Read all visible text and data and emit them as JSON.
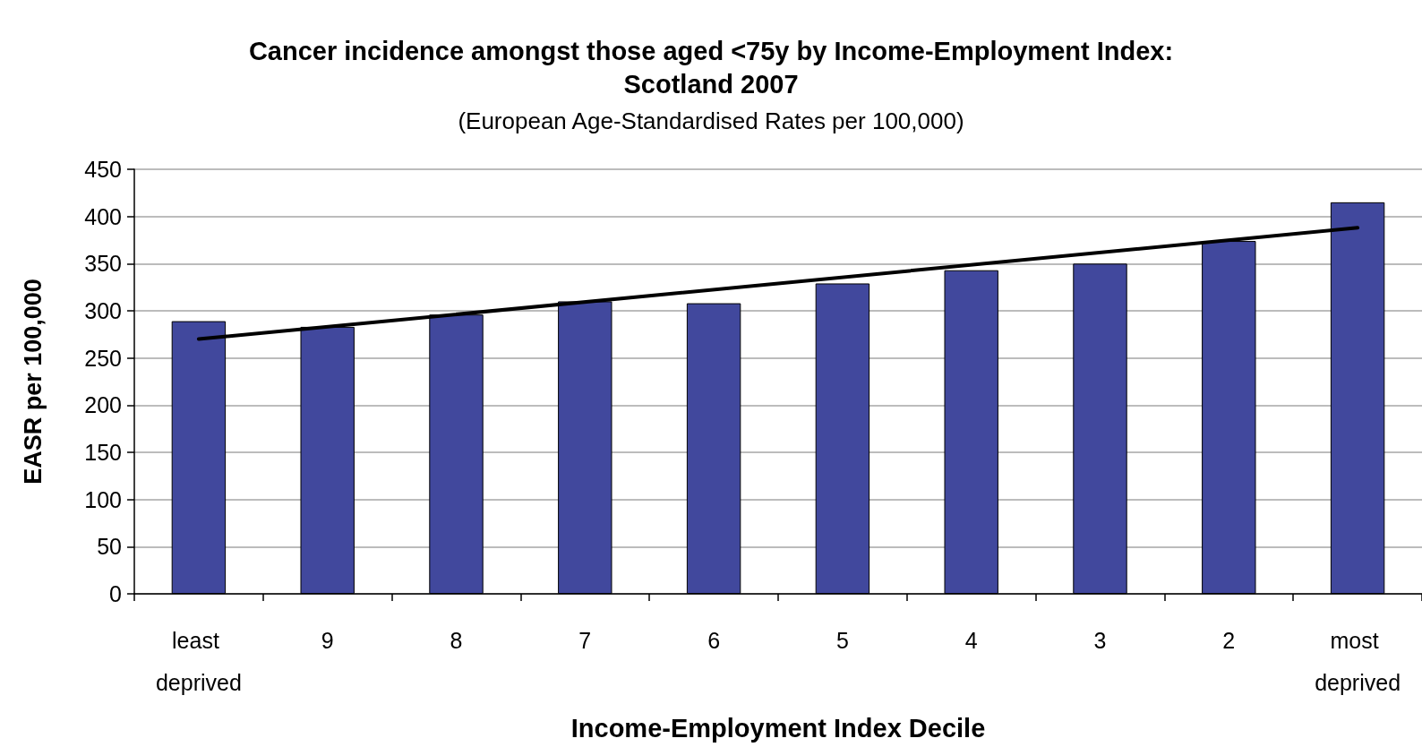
{
  "chart_data": {
    "type": "bar",
    "title": "Cancer incidence amongst those aged <75y by Income-Employment Index: Scotland 2007",
    "subtitle": "(European Age-Standardised Rates per 100,000)",
    "xlabel": "Income-Employment Index Decile",
    "ylabel": "EASR per 100,000",
    "categories": [
      "least deprived",
      "9",
      "8",
      "7",
      "6",
      "5",
      "4",
      "3",
      "2",
      "most deprived"
    ],
    "series": [
      {
        "color": "#41489d",
        "values": [
          289,
          283,
          296,
          310,
          308,
          329,
          343,
          350,
          374,
          415
        ]
      },
      {
        "type": "line",
        "x": [
          "least deprived",
          "most deprived"
        ],
        "values": [
          270,
          388
        ],
        "color": "#000000"
      }
    ],
    "ylim": [
      0,
      450
    ],
    "yticks": [
      0,
      50,
      100,
      150,
      200,
      250,
      300,
      350,
      400,
      450
    ],
    "grid": "y",
    "marker": "none",
    "line_style": "solid"
  }
}
